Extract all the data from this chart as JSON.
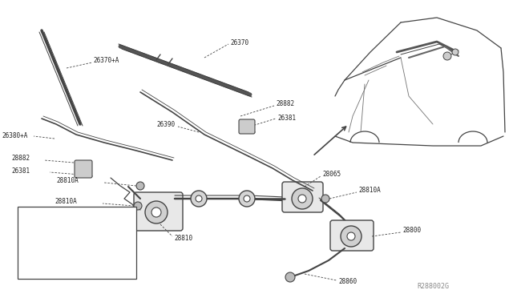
{
  "bg_color": "#ffffff",
  "line_color": "#444444",
  "text_color": "#222222",
  "diagram_id": "R288002G",
  "figsize": [
    6.4,
    3.72
  ],
  "dpi": 100,
  "xlim": [
    0,
    640
  ],
  "ylim": [
    0,
    372
  ]
}
